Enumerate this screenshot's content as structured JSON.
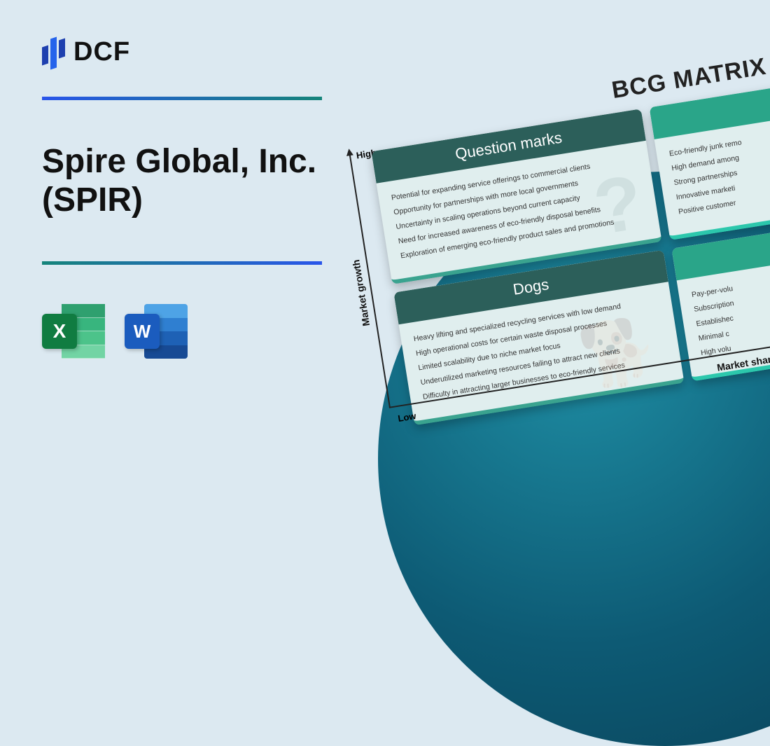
{
  "logo": {
    "text": "DCF"
  },
  "title": "Spire Global, Inc. (SPIR)",
  "icons": {
    "excel_letter": "X",
    "word_letter": "W"
  },
  "matrix": {
    "title": "BCG MATRIX",
    "y_axis": "Market growth",
    "x_axis": "Market share",
    "high": "High",
    "low": "Low",
    "quadrants": {
      "q1": {
        "header": "Question marks",
        "lines": [
          "Potential for expanding service offerings to commercial clients",
          "Opportunity for partnerships with more local governments",
          "Uncertainty in scaling operations beyond current capacity",
          "Need for increased awareness of eco-friendly disposal benefits",
          "Exploration of emerging eco-friendly product sales and promotions"
        ]
      },
      "q2": {
        "lines": [
          "Eco-friendly junk remo",
          "High demand among",
          "Strong partnerships",
          "Innovative marketi",
          "Positive customer"
        ]
      },
      "q3": {
        "header": "Dogs",
        "lines": [
          "Heavy lifting and specialized recycling services with low demand",
          "High operational costs for certain waste disposal processes",
          "Limited scalability due to niche market focus",
          "Underutilized marketing resources failing to attract new clients",
          "Difficulty in attracting larger businesses to eco-friendly services"
        ]
      },
      "q4": {
        "lines": [
          "Pay-per-volu",
          "Subscription",
          "Establishec",
          "Minimal c",
          "High volu"
        ]
      }
    }
  },
  "colors": {
    "page_bg": "#dce9f1",
    "grad_start": "#2955ea",
    "grad_end": "#15847a",
    "circle": "#0d5a74",
    "card_header_dark": "#2c5f5a",
    "card_header_light": "#2aa589",
    "card_bg": "#e0eeee",
    "excel": "#107c41",
    "word": "#1b5cbe"
  }
}
